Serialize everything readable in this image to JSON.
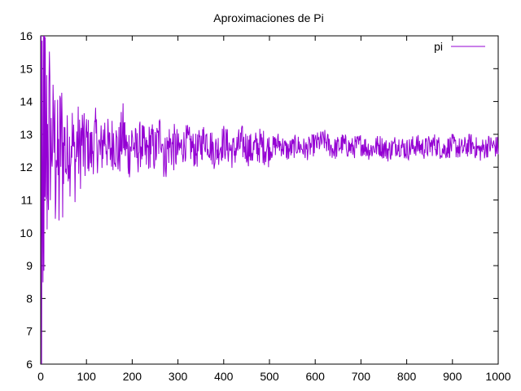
{
  "chart_data": {
    "type": "line",
    "title": "Aproximaciones de Pi",
    "xlabel": "",
    "ylabel": "",
    "xlim": [
      0,
      1000
    ],
    "ylim": [
      6,
      16
    ],
    "x_ticks": [
      "0",
      "100",
      "200",
      "300",
      "400",
      "500",
      "600",
      "700",
      "800",
      "900",
      "1000"
    ],
    "y_ticks": [
      "6",
      "7",
      "8",
      "9",
      "10",
      "11",
      "12",
      "13",
      "14",
      "15",
      "16"
    ],
    "grid": false,
    "legend_position": "top-right",
    "series": [
      {
        "name": "pi",
        "color": "#9400d3",
        "points_note_center": 12.6,
        "x_start": 1,
        "x_end": 1000,
        "anchor_points": [
          [
            1,
            16
          ],
          [
            2,
            6.4
          ],
          [
            3,
            14.9
          ],
          [
            4,
            6.9
          ],
          [
            5,
            7.2
          ],
          [
            6,
            16
          ],
          [
            7,
            11.2
          ],
          [
            8,
            16
          ],
          [
            9,
            9.6
          ],
          [
            10,
            13.6
          ],
          [
            11,
            9.3
          ],
          [
            12,
            13.9
          ],
          [
            14,
            11.8
          ],
          [
            16,
            14.2
          ],
          [
            18,
            12.1
          ],
          [
            20,
            14.5
          ],
          [
            22,
            11.3
          ],
          [
            24,
            13.2
          ],
          [
            26,
            14.2
          ],
          [
            28,
            11.4
          ],
          [
            30,
            14.9
          ],
          [
            32,
            10.5
          ],
          [
            34,
            13.8
          ],
          [
            36,
            11.0
          ],
          [
            38,
            10.6
          ],
          [
            40,
            9.7
          ],
          [
            42,
            12.4
          ],
          [
            45,
            13.8
          ],
          [
            48,
            11.4
          ],
          [
            52,
            13.5
          ],
          [
            56,
            11.0
          ],
          [
            60,
            13.2
          ],
          [
            64,
            12.0
          ],
          [
            68,
            13.8
          ],
          [
            72,
            12.0
          ],
          [
            76,
            11.2
          ],
          [
            80,
            13.3
          ],
          [
            85,
            12.0
          ],
          [
            90,
            13.5
          ],
          [
            95,
            11.9
          ],
          [
            100,
            13.2
          ],
          [
            110,
            12.1
          ],
          [
            120,
            13.5
          ],
          [
            130,
            12.0
          ],
          [
            140,
            13.8
          ],
          [
            150,
            12.2
          ],
          [
            160,
            13.4
          ],
          [
            170,
            12.0
          ],
          [
            180,
            14.0
          ],
          [
            190,
            11.9
          ],
          [
            200,
            13.2
          ],
          [
            210,
            12.1
          ],
          [
            220,
            13.1
          ],
          [
            230,
            11.8
          ],
          [
            240,
            13.0
          ],
          [
            250,
            12.2
          ],
          [
            260,
            13.6
          ],
          [
            265,
            14.0
          ],
          [
            270,
            11.4
          ],
          [
            280,
            12.9
          ],
          [
            300,
            12.3
          ],
          [
            320,
            13.1
          ],
          [
            340,
            12.2
          ],
          [
            360,
            13.5
          ],
          [
            380,
            12.2
          ],
          [
            400,
            13.1
          ],
          [
            420,
            12.2
          ],
          [
            440,
            13.0
          ],
          [
            460,
            12.3
          ],
          [
            480,
            12.8
          ],
          [
            500,
            12.4
          ],
          [
            520,
            13.0
          ],
          [
            540,
            12.3
          ],
          [
            560,
            12.8
          ],
          [
            580,
            12.4
          ],
          [
            600,
            12.9
          ],
          [
            620,
            13.2
          ],
          [
            640,
            12.4
          ],
          [
            660,
            12.9
          ],
          [
            680,
            12.5
          ],
          [
            700,
            12.9
          ],
          [
            720,
            12.4
          ],
          [
            740,
            12.8
          ],
          [
            760,
            12.3
          ],
          [
            780,
            12.9
          ],
          [
            800,
            12.4
          ],
          [
            820,
            12.8
          ],
          [
            840,
            12.5
          ],
          [
            860,
            12.9
          ],
          [
            880,
            12.4
          ],
          [
            900,
            12.8
          ],
          [
            920,
            12.4
          ],
          [
            940,
            12.9
          ],
          [
            960,
            12.3
          ],
          [
            980,
            12.8
          ],
          [
            1000,
            12.6
          ]
        ]
      }
    ]
  }
}
